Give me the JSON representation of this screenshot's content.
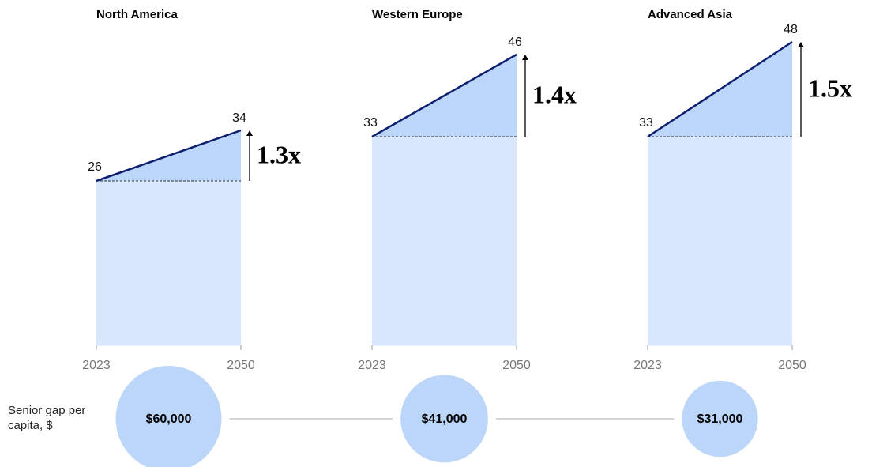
{
  "chart_data": [
    {
      "type": "area",
      "title": "North America",
      "x": [
        "2023",
        "2050"
      ],
      "values": [
        26,
        34
      ],
      "annotation": "1.3x",
      "color": "#bcd6fa",
      "line_color": "#0d1f6e"
    },
    {
      "type": "area",
      "title": "Western Europe",
      "x": [
        "2023",
        "2050"
      ],
      "values": [
        33,
        46
      ],
      "annotation": "1.4x",
      "color": "#bcd6fa",
      "line_color": "#0d1f6e"
    },
    {
      "type": "area",
      "title": "Advanced Asia",
      "x": [
        "2023",
        "2050"
      ],
      "values": [
        33,
        48
      ],
      "annotation": "1.5x",
      "color": "#bcd6fa",
      "line_color": "#0d1f6e"
    },
    {
      "type": "bubble",
      "label": "Senior gap per capita, $",
      "values": [
        60000,
        41000,
        31000
      ],
      "value_labels": [
        "$60,000",
        "$41,000",
        "$31,000"
      ],
      "color": "#bcd6fa"
    }
  ]
}
